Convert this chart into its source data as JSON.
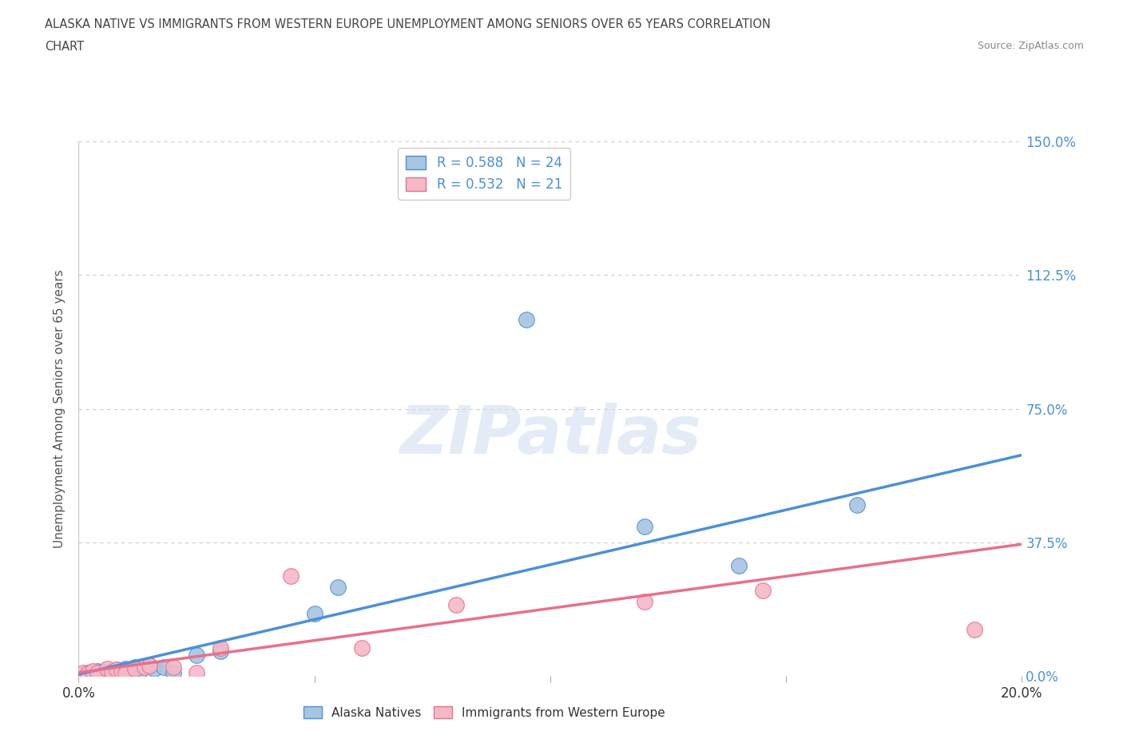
{
  "title_line1": "ALASKA NATIVE VS IMMIGRANTS FROM WESTERN EUROPE UNEMPLOYMENT AMONG SENIORS OVER 65 YEARS CORRELATION",
  "title_line2": "CHART",
  "source": "Source: ZipAtlas.com",
  "ylabel": "Unemployment Among Seniors over 65 years",
  "xlim": [
    0.0,
    0.2
  ],
  "ylim": [
    0.0,
    1.5
  ],
  "ytick_labels": [
    "0.0%",
    "37.5%",
    "75.0%",
    "112.5%",
    "150.0%"
  ],
  "ytick_values": [
    0.0,
    0.375,
    0.75,
    1.125,
    1.5
  ],
  "xtick_values": [
    0.0,
    0.05,
    0.1,
    0.15,
    0.2
  ],
  "xtick_labels": [
    "0.0%",
    "",
    "",
    "",
    "20.0%"
  ],
  "alaska_R": 0.588,
  "alaska_N": 24,
  "immigrant_R": 0.532,
  "immigrant_N": 21,
  "alaska_color": "#a8c4e0",
  "immigrant_color": "#f4b8c8",
  "alaska_line_color": "#4a90d9",
  "immigrant_line_color": "#e8708a",
  "alaska_x": [
    0.001,
    0.002,
    0.003,
    0.004,
    0.005,
    0.006,
    0.007,
    0.008,
    0.009,
    0.01,
    0.012,
    0.013,
    0.015,
    0.016,
    0.018,
    0.02,
    0.025,
    0.03,
    0.05,
    0.055,
    0.095,
    0.12,
    0.14,
    0.165
  ],
  "alaska_y": [
    0.005,
    0.01,
    0.005,
    0.015,
    0.012,
    0.01,
    0.008,
    0.018,
    0.01,
    0.02,
    0.025,
    0.015,
    0.03,
    0.02,
    0.025,
    0.01,
    0.06,
    0.07,
    0.175,
    0.25,
    1.0,
    0.42,
    0.31,
    0.48
  ],
  "immigrant_x": [
    0.001,
    0.002,
    0.003,
    0.004,
    0.006,
    0.007,
    0.008,
    0.009,
    0.01,
    0.012,
    0.014,
    0.015,
    0.02,
    0.025,
    0.03,
    0.045,
    0.06,
    0.08,
    0.12,
    0.145,
    0.19
  ],
  "immigrant_y": [
    0.01,
    0.008,
    0.015,
    0.01,
    0.02,
    0.012,
    0.018,
    0.015,
    0.008,
    0.02,
    0.025,
    0.03,
    0.025,
    0.01,
    0.08,
    0.28,
    0.08,
    0.2,
    0.21,
    0.24,
    0.13
  ],
  "alaska_trend_x": [
    0.0,
    0.2
  ],
  "alaska_trend_y": [
    0.005,
    0.62
  ],
  "immigrant_trend_x": [
    0.0,
    0.2
  ],
  "immigrant_trend_y": [
    0.01,
    0.37
  ],
  "background_color": "#ffffff",
  "watermark_text": "ZIPatlas",
  "grid_color": "#cccccc"
}
